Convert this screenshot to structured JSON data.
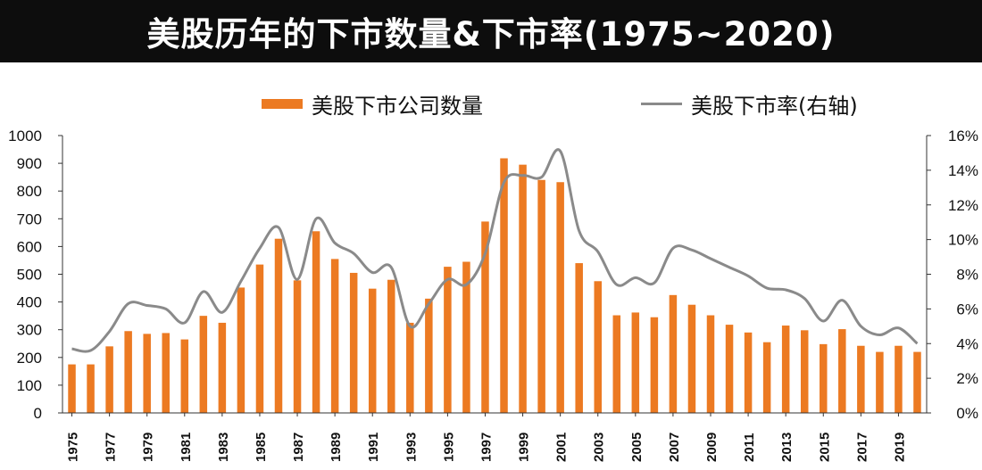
{
  "title": "美股历年的下市数量&下市率(1975~2020)",
  "colors": {
    "bar": "#ec7a22",
    "line": "#8a8a8a",
    "title_bg": "#0d0d0d"
  },
  "legend": {
    "bar_label": "美股下市公司数量",
    "line_label": "美股下市率(右轴)"
  },
  "chart_data": {
    "type": "bar+line",
    "title": "美股历年的下市数量&下市率(1975~2020)",
    "legend_position": "top",
    "grid": false,
    "x": [
      1975,
      1976,
      1977,
      1978,
      1979,
      1980,
      1981,
      1982,
      1983,
      1984,
      1985,
      1986,
      1987,
      1988,
      1989,
      1990,
      1991,
      1992,
      1993,
      1994,
      1995,
      1996,
      1997,
      1998,
      1999,
      2000,
      2001,
      2002,
      2003,
      2004,
      2005,
      2006,
      2007,
      2008,
      2009,
      2010,
      2011,
      2012,
      2013,
      2014,
      2015,
      2016,
      2017,
      2018,
      2019,
      2020
    ],
    "x_tick_labels": [
      "1975",
      "1977",
      "1979",
      "1981",
      "1983",
      "1985",
      "1987",
      "1989",
      "1991",
      "1993",
      "1995",
      "1997",
      "1999",
      "2001",
      "2003",
      "2005",
      "2007",
      "2009",
      "2011",
      "2013",
      "2015",
      "2017",
      "2019"
    ],
    "left_axis": {
      "ylim": [
        0,
        1000
      ],
      "ticks": [
        "0",
        "100",
        "200",
        "300",
        "400",
        "500",
        "600",
        "700",
        "800",
        "900",
        "1000"
      ]
    },
    "right_axis": {
      "ylim": [
        0,
        16
      ],
      "ticks": [
        "0%",
        "2%",
        "4%",
        "6%",
        "8%",
        "10%",
        "12%",
        "14%",
        "16%"
      ]
    },
    "series": [
      {
        "name": "美股下市公司数量",
        "type": "bar",
        "axis": "left",
        "values": [
          175,
          175,
          240,
          295,
          285,
          288,
          265,
          350,
          325,
          452,
          535,
          628,
          478,
          655,
          555,
          505,
          448,
          480,
          325,
          412,
          527,
          545,
          690,
          918,
          895,
          840,
          832,
          540,
          475,
          352,
          362,
          345,
          425,
          390,
          352,
          318,
          290,
          255,
          315,
          298,
          248,
          302,
          242,
          220,
          242,
          220
        ]
      },
      {
        "name": "美股下市率(右轴)",
        "type": "line",
        "axis": "right",
        "values": [
          3.7,
          3.6,
          4.7,
          6.3,
          6.2,
          6.0,
          5.2,
          7.0,
          5.8,
          7.6,
          9.5,
          10.7,
          7.7,
          11.2,
          9.8,
          9.2,
          8.1,
          8.4,
          5.0,
          6.3,
          7.7,
          7.4,
          9.2,
          13.3,
          13.7,
          13.6,
          15.1,
          10.5,
          9.3,
          7.4,
          7.8,
          7.5,
          9.5,
          9.4,
          8.9,
          8.4,
          7.9,
          7.2,
          7.1,
          6.6,
          5.3,
          6.5,
          5.0,
          4.5,
          4.9,
          4.0
        ]
      }
    ]
  }
}
